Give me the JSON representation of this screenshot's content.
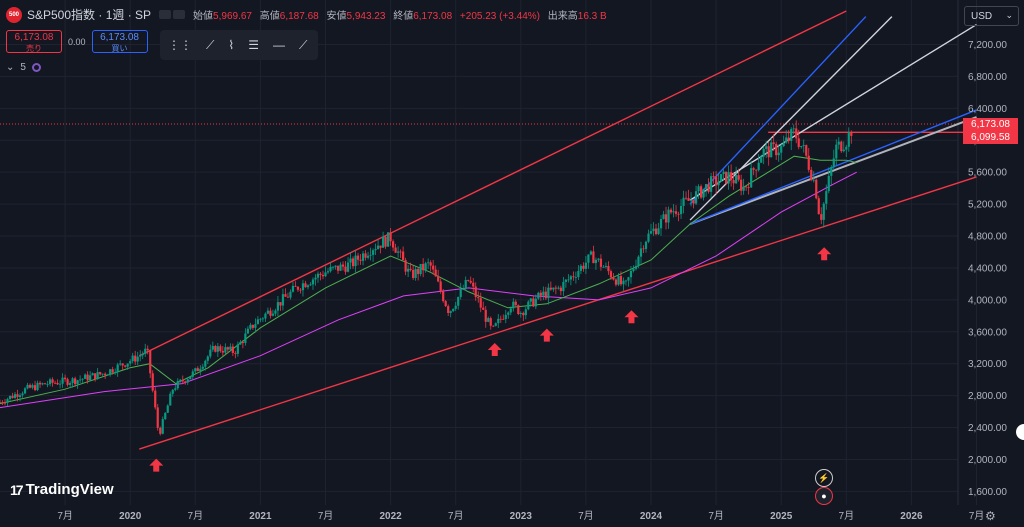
{
  "header": {
    "symbol_badge": "500",
    "symbol_title": "S&P500指数 · 1週 · SP",
    "open_label": "始値",
    "open": "5,969.67",
    "high_label": "高値",
    "high": "6,187.68",
    "low_label": "安値",
    "low": "5,943.23",
    "close_label": "終値",
    "close": "6,173.08",
    "change": "+205.23 (+3.44%)",
    "volume_label": "出来高",
    "volume": "16.3 B"
  },
  "trade": {
    "sell_price": "6,173.08",
    "sell_label": "売り",
    "spread": "0.00",
    "buy_price": "6,173.08",
    "buy_label": "買い"
  },
  "indicator_count": "5",
  "currency": "USD",
  "price_labels": {
    "last": "6,173.08",
    "ma": "6,099.58"
  },
  "brand": "TradingView",
  "colors": {
    "background": "#131722",
    "up": "#089981",
    "down": "#f23645",
    "trendline": "#f23645",
    "ma_short": "#4caf50",
    "ma_long": "#e040fb",
    "gray_line": "#b0b3bc",
    "blue_line": "#2962ff"
  },
  "chart_data": {
    "type": "candlestick",
    "y_ticks": [
      "7,200.00",
      "6,800.00",
      "6,400.00",
      "6,000.00",
      "5,600.00",
      "5,200.00",
      "4,800.00",
      "4,400.00",
      "4,000.00",
      "3,600.00",
      "3,200.00",
      "2,800.00",
      "2,400.00",
      "2,000.00",
      "1,600.00"
    ],
    "y_range": [
      1550,
      7550
    ],
    "x_ticks": [
      {
        "label": "7月",
        "year": 2019.5
      },
      {
        "label": "2020",
        "year": 2020.0
      },
      {
        "label": "7月",
        "year": 2020.5
      },
      {
        "label": "2021",
        "year": 2021.0
      },
      {
        "label": "7月",
        "year": 2021.5
      },
      {
        "label": "2022",
        "year": 2022.0
      },
      {
        "label": "7月",
        "year": 2022.5
      },
      {
        "label": "2023",
        "year": 2023.0
      },
      {
        "label": "7月",
        "year": 2023.5
      },
      {
        "label": "2024",
        "year": 2024.0
      },
      {
        "label": "7月",
        "year": 2024.5
      },
      {
        "label": "2025",
        "year": 2025.0
      },
      {
        "label": "7月",
        "year": 2025.5
      },
      {
        "label": "2026",
        "year": 2026.0
      },
      {
        "label": "7月",
        "year": 2026.5
      }
    ],
    "price_path": [
      [
        2019.0,
        2720
      ],
      [
        2019.2,
        2880
      ],
      [
        2019.35,
        2950
      ],
      [
        2019.6,
        3000
      ],
      [
        2019.8,
        3080
      ],
      [
        2020.05,
        3280
      ],
      [
        2020.13,
        3370
      ],
      [
        2020.22,
        2300
      ],
      [
        2020.33,
        2900
      ],
      [
        2020.5,
        3100
      ],
      [
        2020.65,
        3400
      ],
      [
        2020.8,
        3350
      ],
      [
        2020.95,
        3700
      ],
      [
        2021.1,
        3900
      ],
      [
        2021.3,
        4180
      ],
      [
        2021.5,
        4350
      ],
      [
        2021.7,
        4450
      ],
      [
        2021.85,
        4650
      ],
      [
        2022.0,
        4780
      ],
      [
        2022.15,
        4300
      ],
      [
        2022.3,
        4450
      ],
      [
        2022.45,
        3850
      ],
      [
        2022.6,
        4250
      ],
      [
        2022.78,
        3600
      ],
      [
        2022.92,
        3950
      ],
      [
        2023.0,
        3850
      ],
      [
        2023.15,
        4050
      ],
      [
        2023.3,
        4150
      ],
      [
        2023.55,
        4550
      ],
      [
        2023.8,
        4150
      ],
      [
        2023.95,
        4750
      ],
      [
        2024.15,
        5100
      ],
      [
        2024.3,
        5250
      ],
      [
        2024.45,
        5450
      ],
      [
        2024.6,
        5550
      ],
      [
        2024.72,
        5400
      ],
      [
        2024.85,
        5850
      ],
      [
        2025.0,
        5900
      ],
      [
        2025.1,
        6100
      ],
      [
        2025.18,
        5850
      ],
      [
        2025.26,
        5450
      ],
      [
        2025.3,
        5000
      ],
      [
        2025.34,
        5300
      ],
      [
        2025.42,
        5900
      ],
      [
        2025.5,
        6000
      ],
      [
        2025.55,
        6173
      ]
    ],
    "ma_short": [
      [
        2019.0,
        2700
      ],
      [
        2019.5,
        2880
      ],
      [
        2020.0,
        3150
      ],
      [
        2020.15,
        3200
      ],
      [
        2020.35,
        2950
      ],
      [
        2020.6,
        3150
      ],
      [
        2021.0,
        3650
      ],
      [
        2021.5,
        4150
      ],
      [
        2022.0,
        4550
      ],
      [
        2022.3,
        4350
      ],
      [
        2022.6,
        4100
      ],
      [
        2022.9,
        3900
      ],
      [
        2023.2,
        3950
      ],
      [
        2023.6,
        4200
      ],
      [
        2024.0,
        4500
      ],
      [
        2024.3,
        4950
      ],
      [
        2024.6,
        5300
      ],
      [
        2024.9,
        5600
      ],
      [
        2025.1,
        5800
      ],
      [
        2025.3,
        5750
      ],
      [
        2025.5,
        5750
      ],
      [
        2025.58,
        5720
      ]
    ],
    "ma_long": [
      [
        2019.0,
        2650
      ],
      [
        2019.8,
        2850
      ],
      [
        2020.4,
        2950
      ],
      [
        2021.0,
        3300
      ],
      [
        2021.6,
        3750
      ],
      [
        2022.1,
        4050
      ],
      [
        2022.6,
        4150
      ],
      [
        2023.1,
        4050
      ],
      [
        2023.6,
        4000
      ],
      [
        2024.0,
        4150
      ],
      [
        2024.5,
        4550
      ],
      [
        2025.0,
        5100
      ],
      [
        2025.4,
        5450
      ],
      [
        2025.58,
        5600
      ]
    ],
    "lines": [
      {
        "color": "#f23645",
        "from": [
          2020.07,
          2130
        ],
        "to": [
          2026.5,
          5540
        ]
      },
      {
        "color": "#f23645",
        "from": [
          2020.07,
          3300
        ],
        "to": [
          2025.5,
          7620
        ]
      },
      {
        "color": "#f23645",
        "from": [
          2024.9,
          6100
        ],
        "to": [
          2026.5,
          6100
        ]
      },
      {
        "color": "#b0b3bc",
        "from": [
          2024.3,
          4950
        ],
        "to": [
          2026.5,
          6290
        ],
        "width": 2
      },
      {
        "color": "#2962ff",
        "from": [
          2024.3,
          4950
        ],
        "to": [
          2026.5,
          6380
        ]
      },
      {
        "color": "#2962ff",
        "from": [
          2024.3,
          5200
        ],
        "to": [
          2025.65,
          7550
        ]
      },
      {
        "color": "#d1d4dc",
        "from": [
          2024.3,
          5250
        ],
        "to": [
          2026.5,
          7450
        ]
      },
      {
        "color": "#d1d4dc",
        "from": [
          2024.3,
          5000
        ],
        "to": [
          2025.85,
          7550
        ]
      }
    ],
    "arrows": [
      [
        2020.2,
        2010
      ],
      [
        2022.8,
        3460
      ],
      [
        2023.2,
        3640
      ],
      [
        2023.85,
        3870
      ],
      [
        2025.33,
        4660
      ]
    ],
    "grid": true,
    "legend": "none"
  }
}
